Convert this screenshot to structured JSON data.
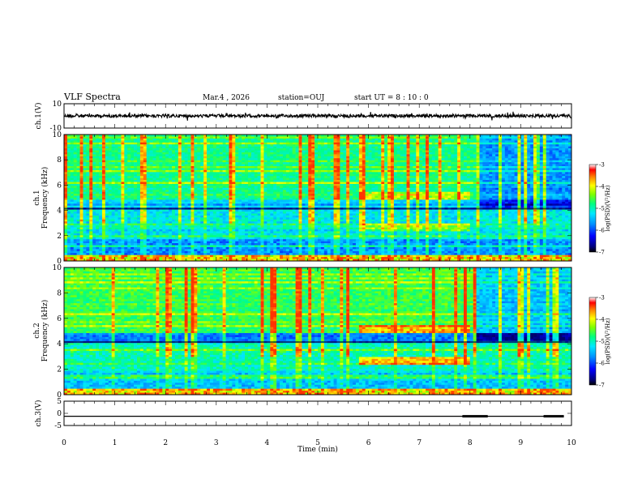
{
  "header": {
    "title": "VLF Spectra",
    "date": "Mar.4 , 2026",
    "station": "station=OUJ",
    "start_ut": "start  UT =  8 : 10 : 0"
  },
  "chart_data": [
    {
      "type": "line",
      "panel": "ch1-waveform",
      "ylabel": "ch.1(V)",
      "ylim": [
        -10,
        10
      ],
      "yticks": [
        "10",
        "-10"
      ],
      "x_range_min": [
        0,
        10
      ],
      "description_series": "continuous noisy waveform around 0 V"
    },
    {
      "type": "heatmap",
      "panel": "ch1-spectrogram",
      "ylabel_top": "ch.1",
      "ylabel": "Frequency (kHz)",
      "ylim": [
        0,
        10
      ],
      "yticks": [
        "0",
        "2",
        "4",
        "6",
        "8",
        "10"
      ],
      "x_range_min": [
        0,
        10
      ],
      "colorbar": {
        "label": "log(PSD)(V²/Hz)",
        "ticks": [
          "-3",
          "-4",
          "-5",
          "-6",
          "-7"
        ],
        "range": [
          -7,
          -3
        ]
      },
      "color_scale": [
        "#00007a",
        "#0000ff",
        "#0080ff",
        "#00d8ff",
        "#00ff90",
        "#7fff00",
        "#ffff00",
        "#ff8000",
        "#ff0000",
        "#ffffff"
      ]
    },
    {
      "type": "heatmap",
      "panel": "ch2-spectrogram",
      "ylabel_top": "ch.2",
      "ylabel": "Frequency (kHz)",
      "ylim": [
        0,
        10
      ],
      "yticks": [
        "0",
        "2",
        "4",
        "6",
        "8",
        "10"
      ],
      "x_range_min": [
        0,
        10
      ],
      "colorbar": {
        "label": "log(PSD)(V²/Hz)",
        "ticks": [
          "-3",
          "-4",
          "-5",
          "-6",
          "-7"
        ],
        "range": [
          -7,
          -3
        ]
      }
    },
    {
      "type": "line",
      "panel": "ch3-waveform",
      "ylabel": "ch.3(V)",
      "ylim": [
        -5,
        5
      ],
      "yticks": [
        "5",
        "0",
        "-5"
      ],
      "x_range_min": [
        0,
        10
      ],
      "level_v": -1.2,
      "thick_segments_min": [
        [
          7.85,
          8.35
        ],
        [
          9.45,
          9.85
        ]
      ]
    }
  ],
  "xaxis": {
    "label": "Time (min)",
    "ticks": [
      "0",
      "1",
      "2",
      "3",
      "4",
      "5",
      "6",
      "7",
      "8",
      "9",
      "10"
    ]
  }
}
